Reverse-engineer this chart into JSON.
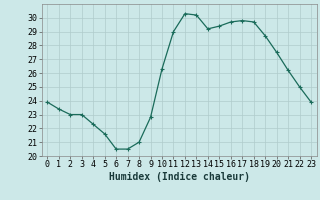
{
  "x": [
    0,
    1,
    2,
    3,
    4,
    5,
    6,
    7,
    8,
    9,
    10,
    11,
    12,
    13,
    14,
    15,
    16,
    17,
    18,
    19,
    20,
    21,
    22,
    23
  ],
  "y": [
    23.9,
    23.4,
    23.0,
    23.0,
    22.3,
    21.6,
    20.5,
    20.5,
    21.0,
    22.8,
    26.3,
    29.0,
    30.3,
    30.2,
    29.2,
    29.4,
    29.7,
    29.8,
    29.7,
    28.7,
    27.5,
    26.2,
    25.0,
    23.9
  ],
  "line_color": "#1a6b5a",
  "marker": "+",
  "marker_size": 3,
  "marker_lw": 0.8,
  "line_width": 0.9,
  "bg_color": "#cce8e8",
  "grid_color": "#b0cccc",
  "xlabel": "Humidex (Indice chaleur)",
  "xlabel_fontsize": 7,
  "tick_fontsize": 6,
  "ylim": [
    20,
    31
  ],
  "xlim": [
    -0.5,
    23.5
  ],
  "yticks": [
    20,
    21,
    22,
    23,
    24,
    25,
    26,
    27,
    28,
    29,
    30
  ],
  "xticks": [
    0,
    1,
    2,
    3,
    4,
    5,
    6,
    7,
    8,
    9,
    10,
    11,
    12,
    13,
    14,
    15,
    16,
    17,
    18,
    19,
    20,
    21,
    22,
    23
  ]
}
